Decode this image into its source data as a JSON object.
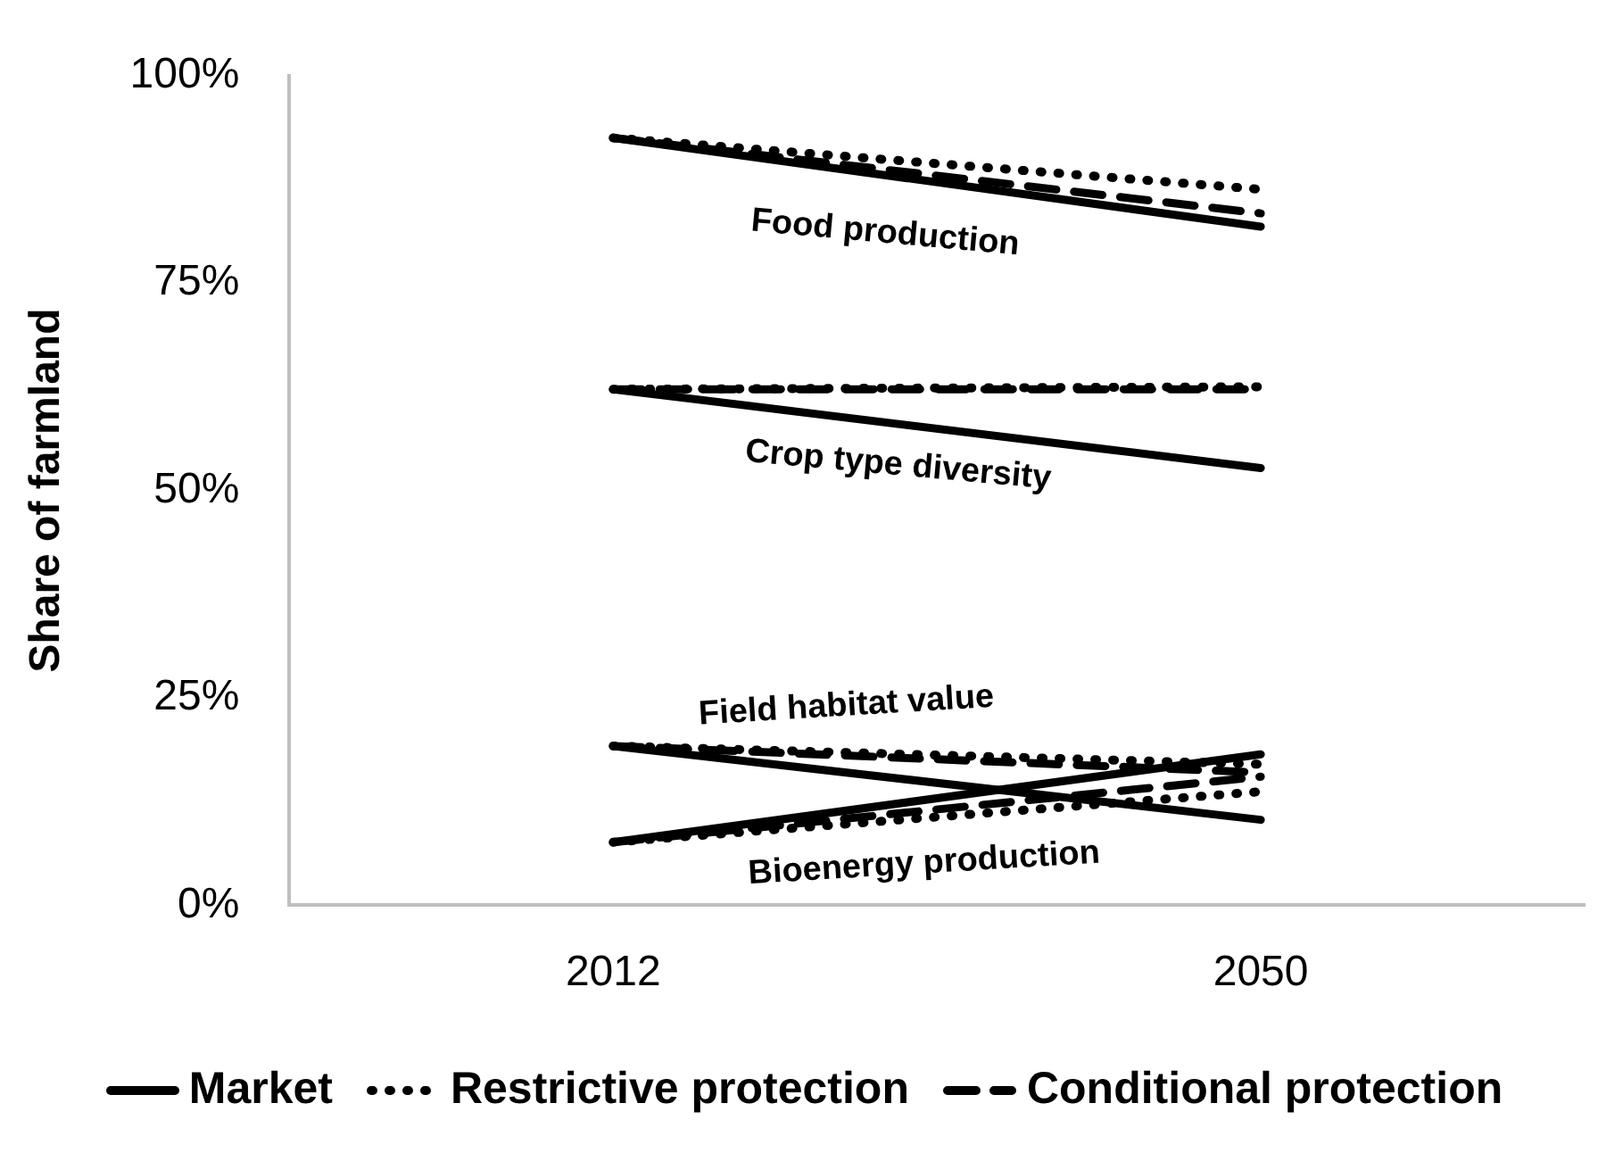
{
  "chart_data": {
    "type": "line",
    "ylabel": "Share of farmland",
    "categories": [
      "2012",
      "2050"
    ],
    "ylim": [
      0,
      100
    ],
    "yticks": [
      {
        "value": 0,
        "label": "0%"
      },
      {
        "value": 25,
        "label": "25%"
      },
      {
        "value": 50,
        "label": "50%"
      },
      {
        "value": 75,
        "label": "75%"
      },
      {
        "value": 100,
        "label": "100%"
      }
    ],
    "grid": false,
    "legend": "bottom",
    "marker": "none",
    "annotations": [
      "Food production",
      "Crop type diversity",
      "Field habitat value",
      "Bioenergy production"
    ],
    "series": [
      {
        "name": "Market",
        "color": "#000000",
        "line_style": "solid",
        "values": [
          92.5,
          81.8
        ]
      },
      {
        "name": "Restrictive protection",
        "color": "#000000",
        "line_style": "dotted",
        "values": [
          92.5,
          86.3
        ]
      },
      {
        "name": "Conditional protection",
        "color": "#000000",
        "line_style": "dashed",
        "values": [
          92.5,
          83.4
        ]
      },
      {
        "color": "#000000",
        "line_style": "solid",
        "values": [
          62.2,
          52.7
        ]
      },
      {
        "color": "#000000",
        "line_style": "dotted",
        "values": [
          62.2,
          62.5
        ]
      },
      {
        "color": "#000000",
        "line_style": "dashed",
        "values": [
          62.2,
          62.2
        ]
      },
      {
        "color": "#000000",
        "line_style": "solid",
        "values": [
          19.2,
          10.3
        ]
      },
      {
        "color": "#000000",
        "line_style": "dotted",
        "values": [
          19.2,
          17
        ]
      },
      {
        "color": "#000000",
        "line_style": "dashed",
        "values": [
          19.2,
          16
        ]
      },
      {
        "color": "#000000",
        "line_style": "solid",
        "values": [
          7.6,
          18.2
        ]
      },
      {
        "color": "#000000",
        "line_style": "dotted",
        "values": [
          7.6,
          13.7
        ]
      },
      {
        "color": "#000000",
        "line_style": "dashed",
        "values": [
          7.6,
          15.5
        ]
      }
    ]
  }
}
